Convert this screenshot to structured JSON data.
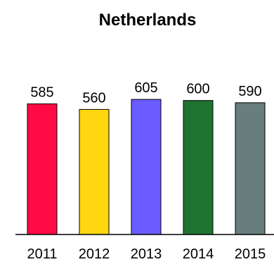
{
  "chart_data": {
    "type": "bar",
    "title": "Netherlands",
    "categories": [
      "2011",
      "2012",
      "2013",
      "2014",
      "2015"
    ],
    "values": [
      585,
      560,
      605,
      600,
      590
    ],
    "colors": [
      "#ff0a45",
      "#ffd60f",
      "#6a5cff",
      "#1f7330",
      "#687d7d"
    ],
    "data_labels": [
      "585",
      "560",
      "605",
      "600",
      "590"
    ],
    "xlabel": "",
    "ylabel": "",
    "ylim": [
      0,
      1050
    ],
    "grid": false,
    "legend": "none"
  }
}
